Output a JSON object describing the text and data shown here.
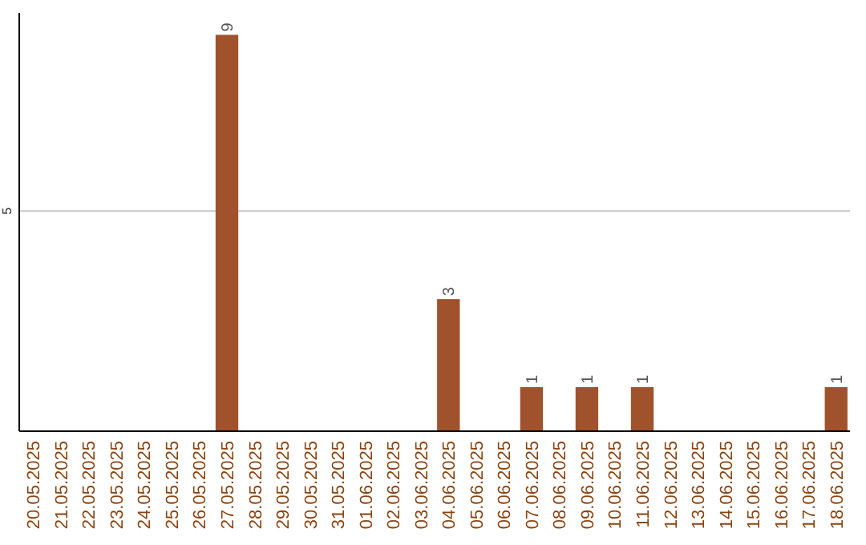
{
  "chart_data": {
    "type": "bar",
    "categories": [
      "20.05.2025",
      "21.05.2025",
      "22.05.2025",
      "23.05.2025",
      "24.05.2025",
      "25.05.2025",
      "26.05.2025",
      "27.05.2025",
      "28.05.2025",
      "29.05.2025",
      "30.05.2025",
      "31.05.2025",
      "01.06.2025",
      "02.06.2025",
      "03.06.2025",
      "04.06.2025",
      "05.06.2025",
      "06.06.2025",
      "07.06.2025",
      "08.06.2025",
      "09.06.2025",
      "10.06.2025",
      "11.06.2025",
      "12.06.2025",
      "13.06.2025",
      "14.06.2025",
      "15.06.2025",
      "16.06.2025",
      "17.06.2025",
      "18.06.2025"
    ],
    "values": [
      0,
      0,
      0,
      0,
      0,
      0,
      0,
      9,
      0,
      0,
      0,
      0,
      0,
      0,
      0,
      3,
      0,
      0,
      1,
      0,
      1,
      0,
      1,
      0,
      0,
      0,
      0,
      0,
      0,
      1
    ],
    "value_labels": [
      null,
      null,
      null,
      null,
      null,
      null,
      null,
      "9",
      null,
      null,
      null,
      null,
      null,
      null,
      null,
      "3",
      null,
      null,
      "1",
      null,
      "1",
      null,
      "1",
      null,
      null,
      null,
      null,
      null,
      null,
      "1"
    ],
    "color": "#a0522d",
    "ylim": [
      0,
      9.5
    ],
    "yticks": [
      5
    ],
    "grid": "y"
  }
}
